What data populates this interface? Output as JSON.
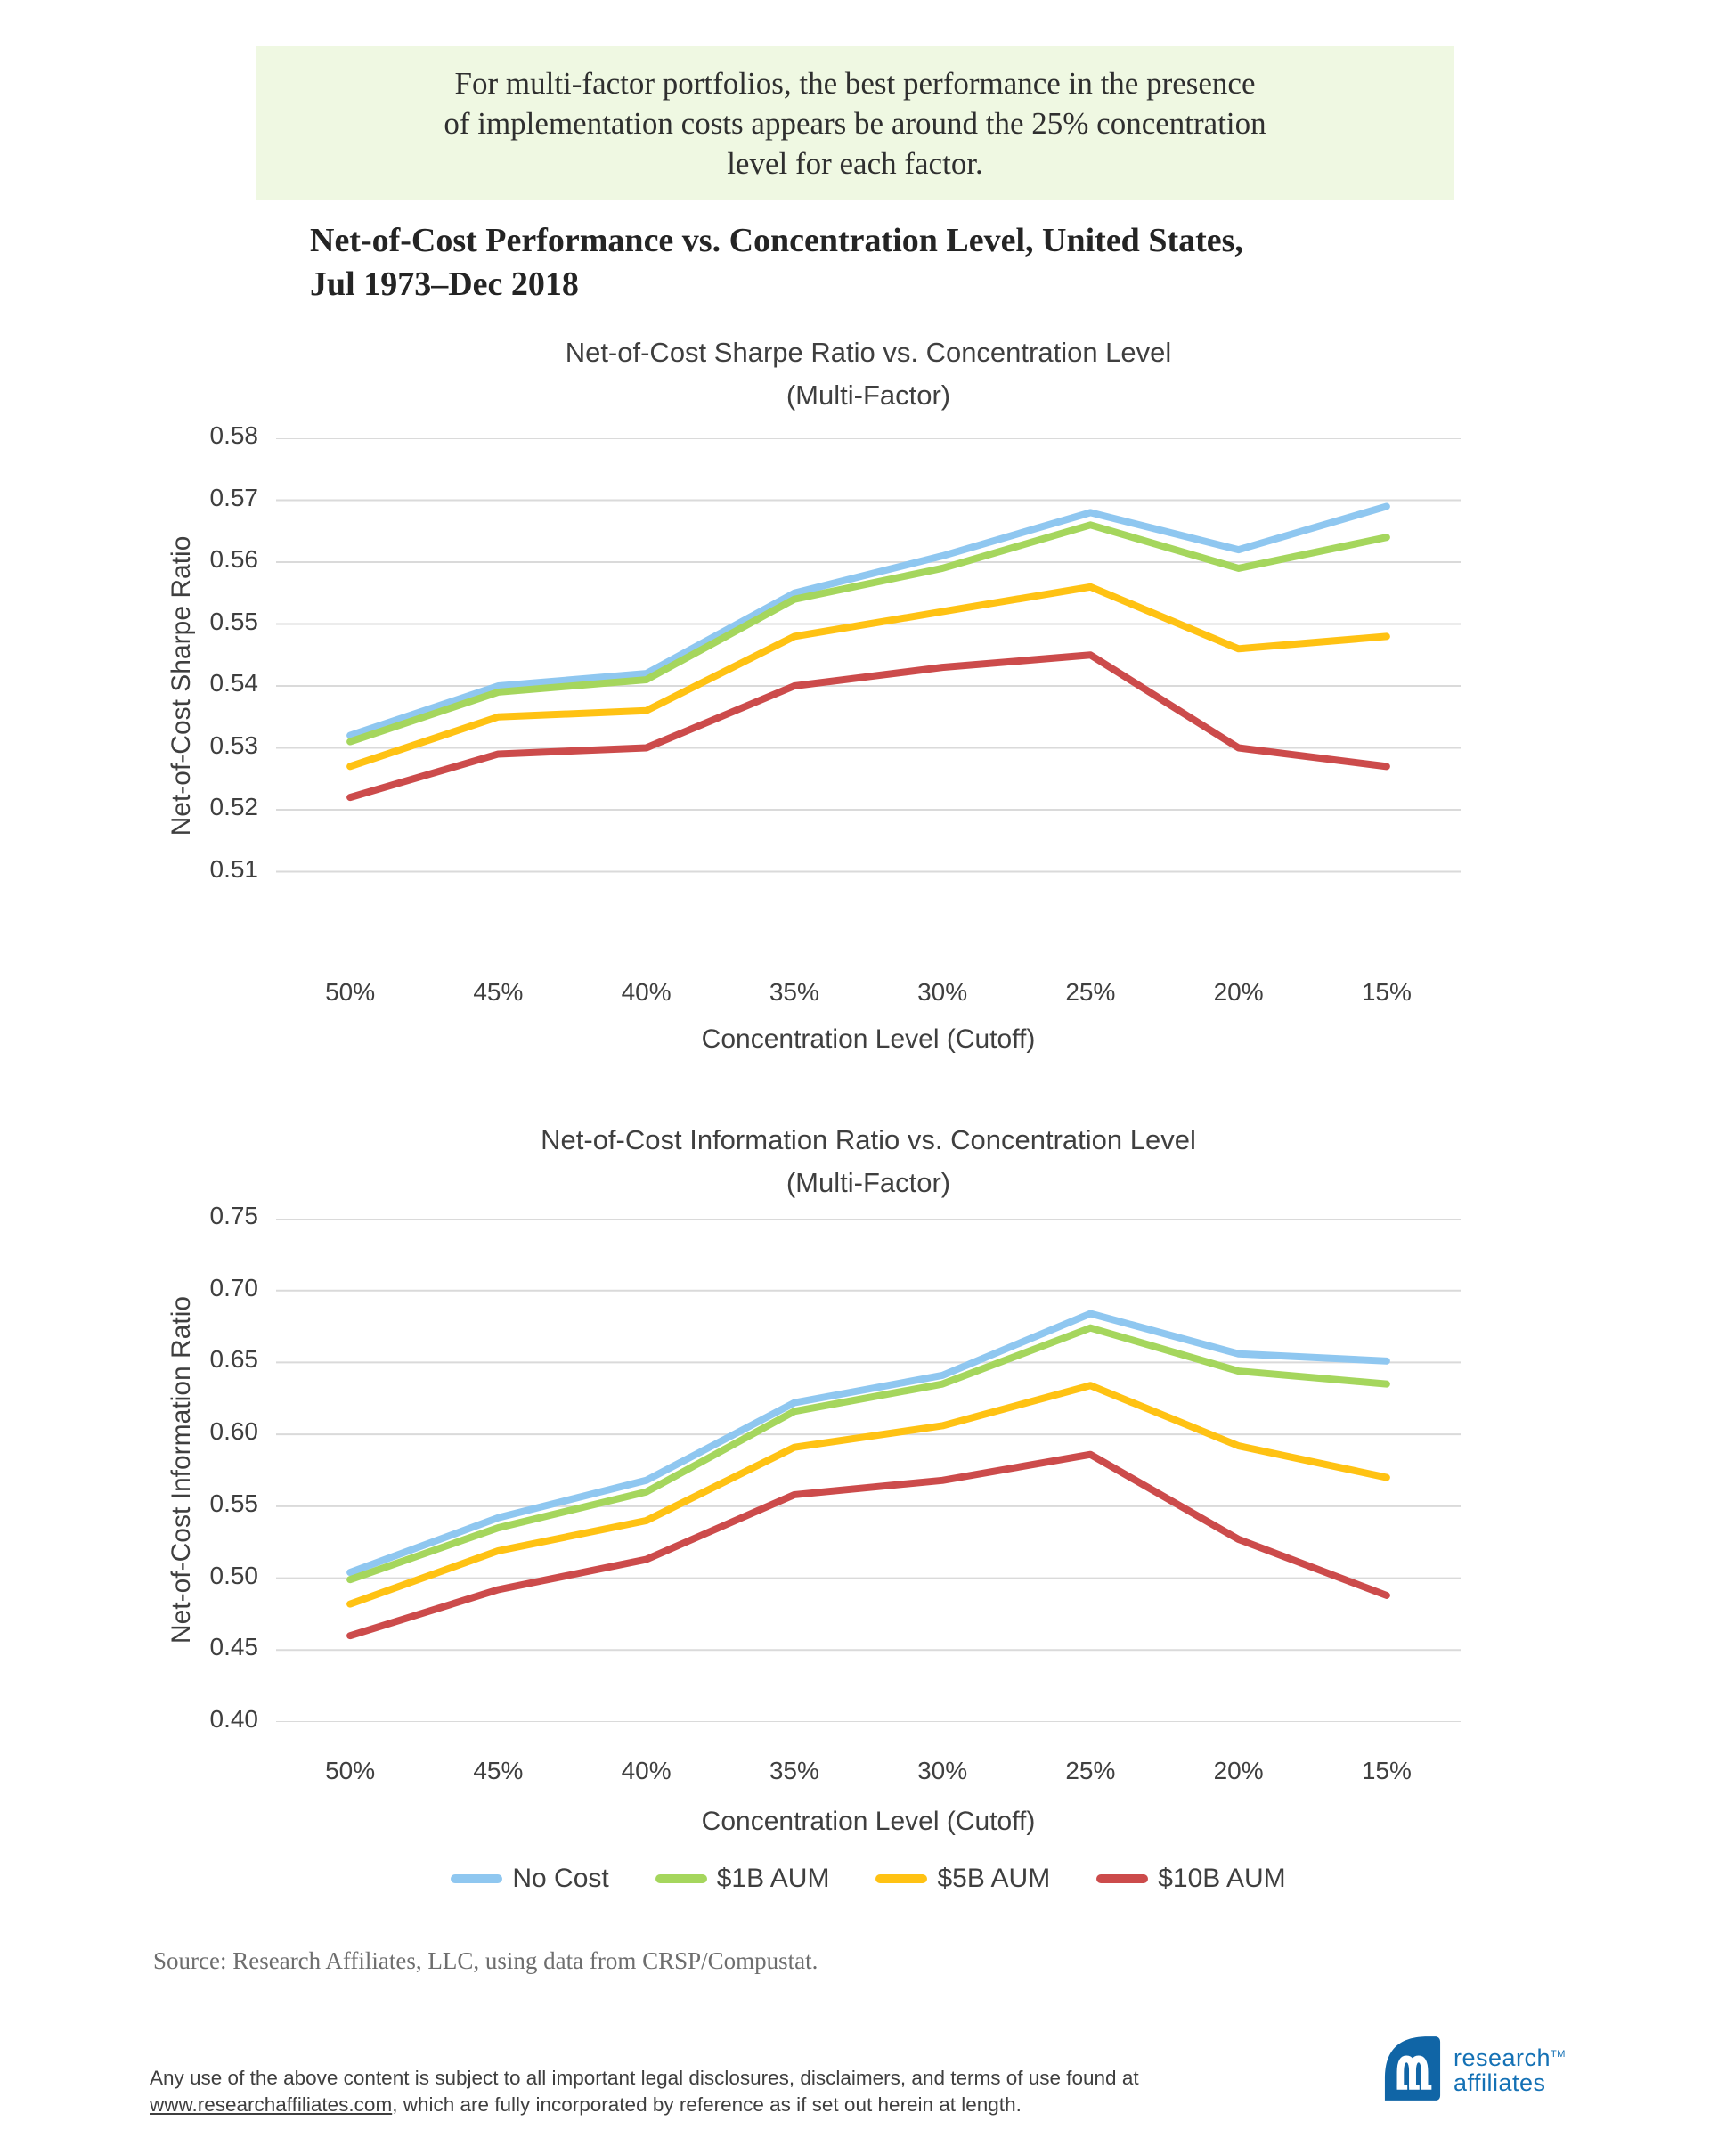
{
  "banner": {
    "lines": [
      "For multi-factor portfolios, the best performance in the presence",
      "of implementation costs appears be around the 25% concentration",
      "level for each factor."
    ]
  },
  "heading": {
    "lines": [
      "Net-of-Cost Performance vs. Concentration Level, United States,",
      "Jul 1973–Dec 2018"
    ]
  },
  "colors": {
    "no_cost": "#8FC7F0",
    "aum_1b": "#A5D65D",
    "aum_5b": "#FFC213",
    "aum_10b": "#CC4B4B",
    "gridline": "#DADADA",
    "chart_text": "#3F3F3F",
    "banner_bg": "#EFF8E2",
    "logo_blue": "#1471B5",
    "logo_mark_blue": "#1065A6"
  },
  "chart_data": [
    {
      "type": "line",
      "title": "Net-of-Cost Sharpe Ratio vs. Concentration Level",
      "subtitle": "(Multi-Factor)",
      "categories": [
        "50%",
        "45%",
        "40%",
        "35%",
        "30%",
        "25%",
        "20%",
        "15%"
      ],
      "xlabel": "Concentration Level (Cutoff)",
      "ylabel": "Net-of-Cost Sharpe Ratio",
      "ylim": [
        0.5,
        0.58
      ],
      "yticks": [
        0.51,
        0.52,
        0.53,
        0.54,
        0.55,
        0.56,
        0.57,
        0.58
      ],
      "ytick_decimals": 2,
      "grid": true,
      "legend_position": "bottom-shared",
      "series": [
        {
          "name": "No Cost",
          "color": "#8FC7F0",
          "values": [
            0.532,
            0.54,
            0.542,
            0.555,
            0.561,
            0.568,
            0.562,
            0.569
          ]
        },
        {
          "name": "$1B AUM",
          "color": "#A5D65D",
          "values": [
            0.531,
            0.539,
            0.541,
            0.554,
            0.559,
            0.566,
            0.559,
            0.564
          ]
        },
        {
          "name": "$5B AUM",
          "color": "#FFC213",
          "values": [
            0.527,
            0.535,
            0.536,
            0.548,
            0.552,
            0.556,
            0.546,
            0.548
          ]
        },
        {
          "name": "$10B AUM",
          "color": "#CC4B4B",
          "values": [
            0.522,
            0.529,
            0.53,
            0.54,
            0.543,
            0.545,
            0.53,
            0.527
          ]
        }
      ]
    },
    {
      "type": "line",
      "title": "Net-of-Cost Information Ratio vs. Concentration Level",
      "subtitle": "(Multi-Factor)",
      "categories": [
        "50%",
        "45%",
        "40%",
        "35%",
        "30%",
        "25%",
        "20%",
        "15%"
      ],
      "xlabel": "Concentration Level (Cutoff)",
      "ylabel": "Net-of-Cost Information Ratio",
      "ylim": [
        0.4,
        0.75
      ],
      "yticks": [
        0.4,
        0.45,
        0.5,
        0.55,
        0.6,
        0.65,
        0.7,
        0.75
      ],
      "ytick_decimals": 2,
      "grid": true,
      "legend_position": "bottom-shared",
      "series": [
        {
          "name": "No Cost",
          "color": "#8FC7F0",
          "values": [
            0.504,
            0.542,
            0.568,
            0.622,
            0.641,
            0.684,
            0.656,
            0.651
          ]
        },
        {
          "name": "$1B AUM",
          "color": "#A5D65D",
          "values": [
            0.499,
            0.535,
            0.56,
            0.616,
            0.635,
            0.674,
            0.644,
            0.635
          ]
        },
        {
          "name": "$5B AUM",
          "color": "#FFC213",
          "values": [
            0.482,
            0.519,
            0.54,
            0.591,
            0.606,
            0.634,
            0.592,
            0.57
          ]
        },
        {
          "name": "$10B AUM",
          "color": "#CC4B4B",
          "values": [
            0.46,
            0.492,
            0.513,
            0.558,
            0.568,
            0.586,
            0.527,
            0.488
          ]
        }
      ]
    }
  ],
  "source": {
    "text": "Source: Research Affiliates, LLC, using data from CRSP/Compustat."
  },
  "footer": {
    "line1": "Any use of the above content is subject to all important legal disclosures, disclaimers, and terms of use found at",
    "link": "www.researchaffiliates.com",
    "line2_after_link": ", which are fully incorporated by reference as if set out herein at length."
  },
  "logo": {
    "brand_line1": "research",
    "brand_line2": "affiliates",
    "trademark": "TM"
  }
}
